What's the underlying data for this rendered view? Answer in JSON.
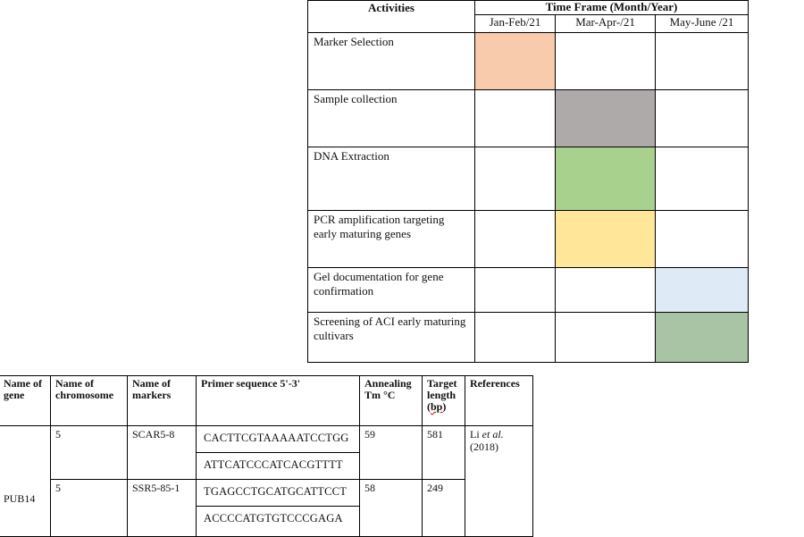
{
  "gantt": {
    "activities_header": "Activities",
    "timeframe_header": "Time Frame (Month/Year)",
    "months": [
      "Jan-Feb/21",
      "Mar-Apr-/21",
      "May-June /21"
    ],
    "rows": [
      {
        "activity": "Marker Selection",
        "fills": [
          "#f8cbad",
          "",
          ""
        ]
      },
      {
        "activity": "Sample collection",
        "fills": [
          "",
          "#aeaaaa",
          ""
        ]
      },
      {
        "activity": "DNA Extraction",
        "fills": [
          "",
          "#a9d18e",
          ""
        ]
      },
      {
        "activity": "PCR amplification targeting early maturing genes",
        "fills": [
          "",
          "#ffe699",
          ""
        ]
      },
      {
        "activity": "Gel documentation for gene confirmation",
        "fills": [
          "",
          "",
          "#deebf7"
        ]
      },
      {
        "activity": "Screening of ACI early maturing cultivars",
        "fills": [
          "",
          "",
          "#a9c4a4"
        ]
      }
    ]
  },
  "primer": {
    "headers": {
      "gene": "Name of gene",
      "chromosome": "Name of chromosome",
      "markers": "Name of markers",
      "sequence": "Primer sequence 5'-3'",
      "annealing": "Annealing Tm °C",
      "target_prefix": "Target length (",
      "target_unit": "bp",
      "target_suffix": ")",
      "references": "References"
    },
    "gene": "PUB14",
    "reference_author": "Li",
    "reference_etal": " et al.",
    "reference_year": "(2018)",
    "rows": [
      {
        "chromosome": "5",
        "marker": "SCAR5-8",
        "forward": "CACTTCGTAAAAATCCTGG",
        "reverse": "ATTCATCCCATCACGTTTT",
        "annealing": "59",
        "target": "581"
      },
      {
        "chromosome": "5",
        "marker": "SSR5-85-1",
        "forward": "TGAGCCTGCATGCATTCCT",
        "reverse": "ACCCCATGTGTCCCGAGA",
        "annealing": "58",
        "target": "249"
      }
    ]
  }
}
